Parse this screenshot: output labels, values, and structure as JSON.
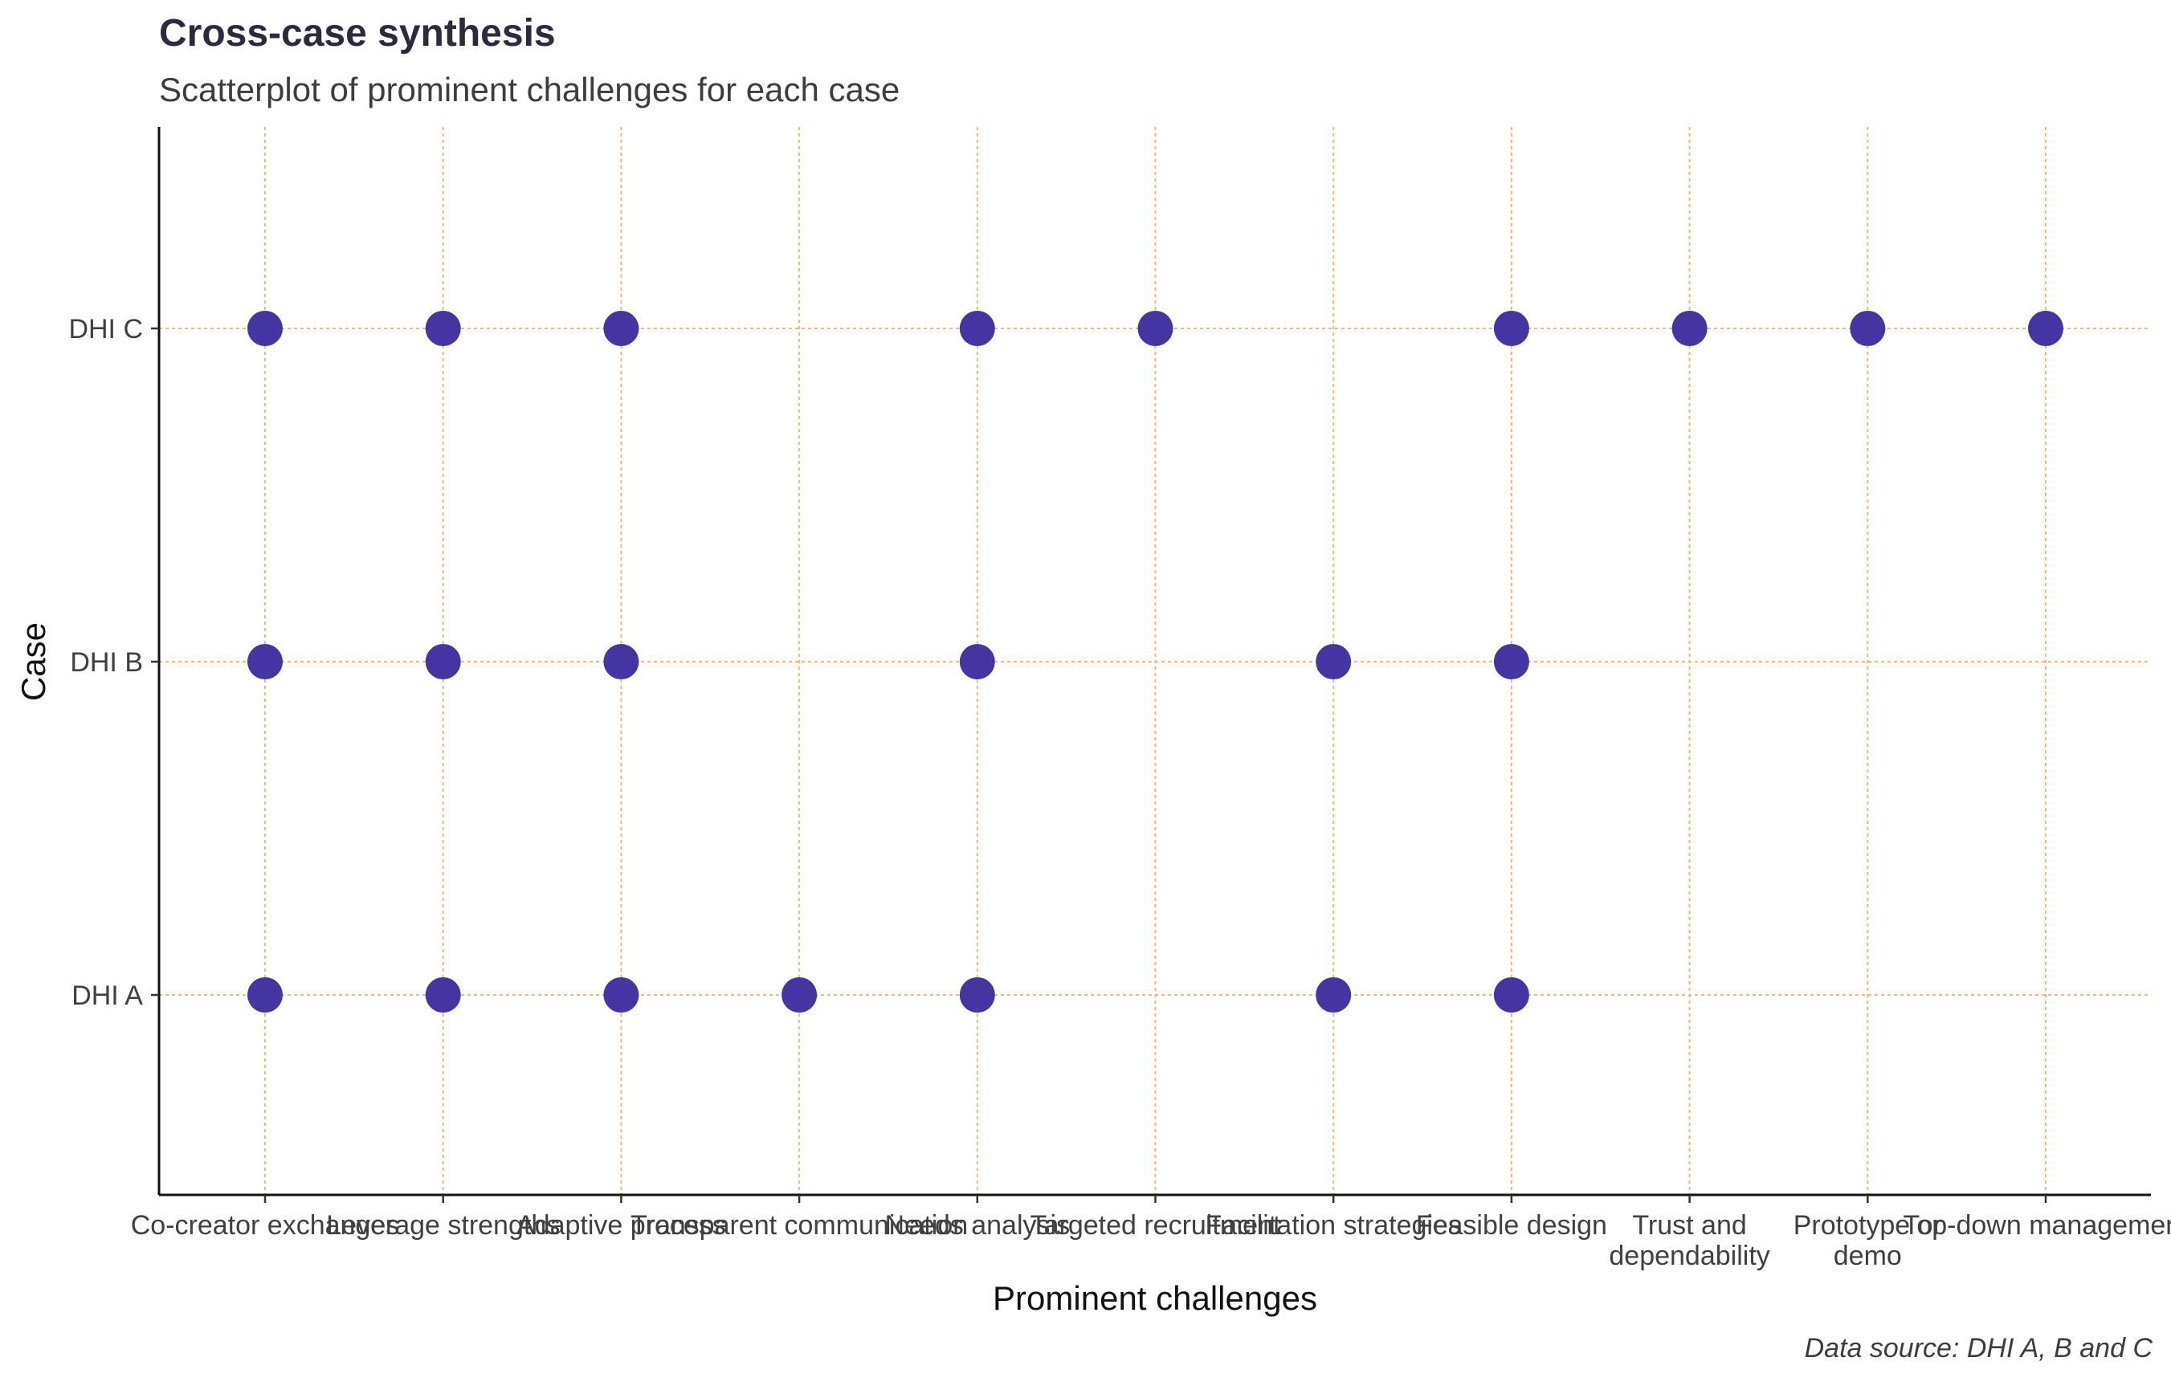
{
  "chart_data": {
    "type": "scatter",
    "title": "Cross-case synthesis",
    "subtitle": "Scatterplot of prominent challenges for each case",
    "xlabel": "Prominent challenges",
    "ylabel": "Case",
    "caption": "Data source: DHI A, B and C",
    "x_categories": [
      [
        "Co-creator exchanges"
      ],
      [
        "Leverage strengths"
      ],
      [
        "Adaptive process"
      ],
      [
        "Transparent communication"
      ],
      [
        "Needs analysis"
      ],
      [
        "Targeted recruitment"
      ],
      [
        "Facilitation strategies"
      ],
      [
        "Feasible design"
      ],
      [
        "Trust and",
        "dependability"
      ],
      [
        "Prototype or",
        "demo"
      ],
      [
        "Top-down management"
      ]
    ],
    "y_categories": [
      "DHI A",
      "DHI B",
      "DHI C"
    ],
    "points": [
      {
        "x": 0,
        "y": "DHI A"
      },
      {
        "x": 1,
        "y": "DHI A"
      },
      {
        "x": 2,
        "y": "DHI A"
      },
      {
        "x": 3,
        "y": "DHI A"
      },
      {
        "x": 4,
        "y": "DHI A"
      },
      {
        "x": 6,
        "y": "DHI A"
      },
      {
        "x": 7,
        "y": "DHI A"
      },
      {
        "x": 0,
        "y": "DHI B"
      },
      {
        "x": 1,
        "y": "DHI B"
      },
      {
        "x": 2,
        "y": "DHI B"
      },
      {
        "x": 4,
        "y": "DHI B"
      },
      {
        "x": 6,
        "y": "DHI B"
      },
      {
        "x": 7,
        "y": "DHI B"
      },
      {
        "x": 0,
        "y": "DHI C"
      },
      {
        "x": 1,
        "y": "DHI C"
      },
      {
        "x": 2,
        "y": "DHI C"
      },
      {
        "x": 4,
        "y": "DHI C"
      },
      {
        "x": 5,
        "y": "DHI C"
      },
      {
        "x": 7,
        "y": "DHI C"
      },
      {
        "x": 8,
        "y": "DHI C"
      },
      {
        "x": 9,
        "y": "DHI C"
      },
      {
        "x": 10,
        "y": "DHI C"
      }
    ],
    "grid": true,
    "legend": "none",
    "colors": {
      "point": "#4535a3",
      "grid": "#f3b57a",
      "axis": "#111111"
    }
  }
}
